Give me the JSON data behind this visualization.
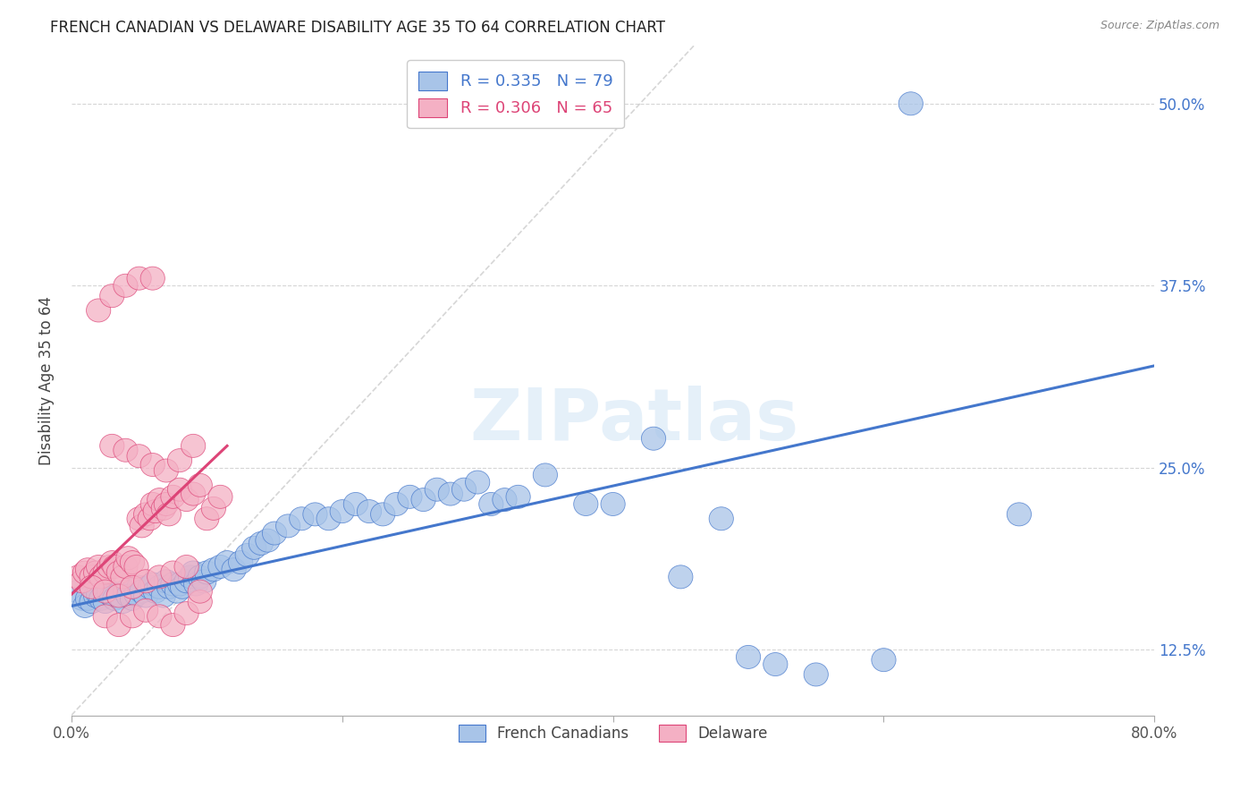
{
  "title": "FRENCH CANADIAN VS DELAWARE DISABILITY AGE 35 TO 64 CORRELATION CHART",
  "source": "Source: ZipAtlas.com",
  "ylabel": "Disability Age 35 to 64",
  "xlim": [
    0.0,
    0.8
  ],
  "ylim": [
    0.08,
    0.54
  ],
  "xticks": [
    0.0,
    0.2,
    0.4,
    0.6,
    0.8
  ],
  "xtick_labels": [
    "0.0%",
    "",
    "",
    "",
    "80.0%"
  ],
  "ytick_labels": [
    "12.5%",
    "25.0%",
    "37.5%",
    "50.0%"
  ],
  "yticks": [
    0.125,
    0.25,
    0.375,
    0.5
  ],
  "legend_blue_r": "R = 0.335",
  "legend_blue_n": "N = 79",
  "legend_pink_r": "R = 0.306",
  "legend_pink_n": "N = 65",
  "blue_color": "#a8c4e8",
  "pink_color": "#f4b0c4",
  "blue_line_color": "#4477cc",
  "pink_line_color": "#dd4477",
  "diagonal_color": "#cccccc",
  "watermark": "ZIPatlas",
  "blue_scatter_x": [
    0.005,
    0.008,
    0.01,
    0.012,
    0.015,
    0.018,
    0.02,
    0.022,
    0.025,
    0.028,
    0.03,
    0.032,
    0.035,
    0.038,
    0.04,
    0.042,
    0.045,
    0.048,
    0.05,
    0.052,
    0.055,
    0.058,
    0.06,
    0.062,
    0.065,
    0.068,
    0.07,
    0.072,
    0.075,
    0.078,
    0.08,
    0.082,
    0.085,
    0.088,
    0.09,
    0.092,
    0.095,
    0.098,
    0.1,
    0.105,
    0.11,
    0.115,
    0.12,
    0.125,
    0.13,
    0.135,
    0.14,
    0.145,
    0.15,
    0.16,
    0.17,
    0.18,
    0.19,
    0.2,
    0.21,
    0.22,
    0.23,
    0.24,
    0.25,
    0.26,
    0.27,
    0.28,
    0.29,
    0.3,
    0.31,
    0.32,
    0.33,
    0.35,
    0.38,
    0.4,
    0.43,
    0.45,
    0.48,
    0.5,
    0.52,
    0.55,
    0.6,
    0.62,
    0.7
  ],
  "blue_scatter_y": [
    0.165,
    0.16,
    0.155,
    0.16,
    0.158,
    0.162,
    0.163,
    0.16,
    0.158,
    0.165,
    0.162,
    0.16,
    0.163,
    0.158,
    0.165,
    0.162,
    0.16,
    0.163,
    0.168,
    0.165,
    0.162,
    0.168,
    0.17,
    0.165,
    0.168,
    0.162,
    0.172,
    0.168,
    0.17,
    0.165,
    0.17,
    0.168,
    0.172,
    0.175,
    0.178,
    0.17,
    0.175,
    0.172,
    0.178,
    0.18,
    0.182,
    0.185,
    0.18,
    0.185,
    0.19,
    0.195,
    0.198,
    0.2,
    0.205,
    0.21,
    0.215,
    0.218,
    0.215,
    0.22,
    0.225,
    0.22,
    0.218,
    0.225,
    0.23,
    0.228,
    0.235,
    0.232,
    0.235,
    0.24,
    0.225,
    0.228,
    0.23,
    0.245,
    0.225,
    0.225,
    0.27,
    0.175,
    0.215,
    0.12,
    0.115,
    0.108,
    0.118,
    0.5,
    0.218
  ],
  "pink_scatter_x": [
    0.005,
    0.008,
    0.01,
    0.012,
    0.015,
    0.018,
    0.02,
    0.022,
    0.025,
    0.028,
    0.03,
    0.032,
    0.035,
    0.038,
    0.04,
    0.042,
    0.045,
    0.048,
    0.05,
    0.052,
    0.055,
    0.058,
    0.06,
    0.062,
    0.065,
    0.068,
    0.07,
    0.072,
    0.075,
    0.08,
    0.085,
    0.09,
    0.095,
    0.1,
    0.105,
    0.11,
    0.02,
    0.03,
    0.04,
    0.05,
    0.06,
    0.03,
    0.04,
    0.05,
    0.06,
    0.07,
    0.08,
    0.09,
    0.025,
    0.035,
    0.045,
    0.055,
    0.065,
    0.075,
    0.085,
    0.095,
    0.015,
    0.025,
    0.035,
    0.045,
    0.055,
    0.065,
    0.075,
    0.085,
    0.095
  ],
  "pink_scatter_y": [
    0.175,
    0.172,
    0.178,
    0.18,
    0.175,
    0.178,
    0.182,
    0.175,
    0.178,
    0.182,
    0.185,
    0.182,
    0.178,
    0.175,
    0.182,
    0.188,
    0.185,
    0.182,
    0.215,
    0.21,
    0.218,
    0.215,
    0.225,
    0.22,
    0.228,
    0.222,
    0.225,
    0.218,
    0.23,
    0.235,
    0.228,
    0.232,
    0.238,
    0.215,
    0.222,
    0.23,
    0.358,
    0.368,
    0.375,
    0.38,
    0.38,
    0.265,
    0.262,
    0.258,
    0.252,
    0.248,
    0.255,
    0.265,
    0.148,
    0.142,
    0.148,
    0.152,
    0.148,
    0.142,
    0.15,
    0.158,
    0.168,
    0.165,
    0.162,
    0.168,
    0.172,
    0.175,
    0.178,
    0.182,
    0.165
  ]
}
